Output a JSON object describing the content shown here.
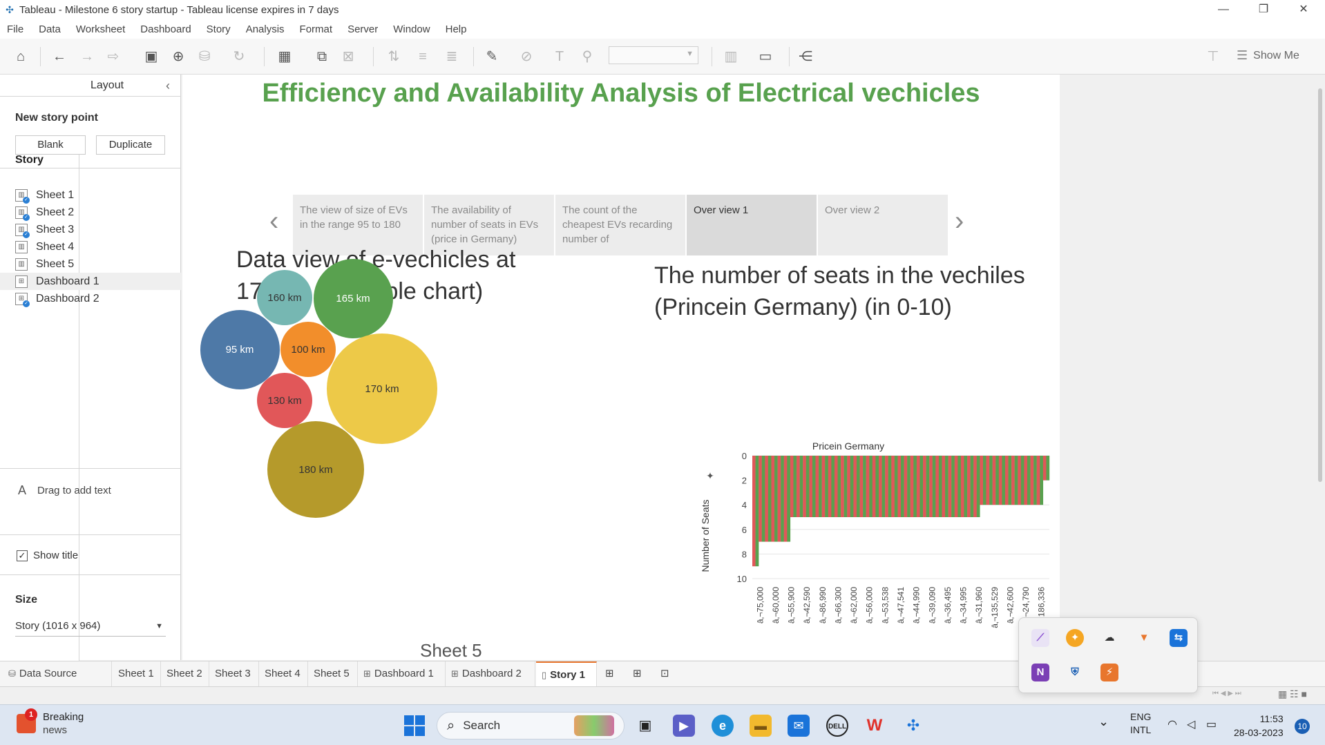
{
  "window": {
    "title": "Tableau - Milestone 6 story startup - Tableau license expires in 7 days",
    "minimize": "—",
    "restore": "❐",
    "close": "✕"
  },
  "menu": [
    "File",
    "Data",
    "Worksheet",
    "Dashboard",
    "Story",
    "Analysis",
    "Format",
    "Server",
    "Window",
    "Help"
  ],
  "toolbar": {
    "show_me": "Show Me"
  },
  "left_panel": {
    "tabs": {
      "story": "Story",
      "layout": "Layout"
    },
    "new_story_point": "New story point",
    "blank": "Blank",
    "duplicate": "Duplicate",
    "sheets": [
      {
        "label": "Sheet 1"
      },
      {
        "label": "Sheet 2"
      },
      {
        "label": "Sheet 3"
      },
      {
        "label": "Sheet 4"
      },
      {
        "label": "Sheet 5"
      },
      {
        "label": "Dashboard 1"
      },
      {
        "label": "Dashboard 2"
      }
    ],
    "drag_text": "Drag to add text",
    "show_title": "Show title",
    "size_label": "Size",
    "size_value": "Story (1016 x 964)"
  },
  "story": {
    "title": "Efficiency and Availability Analysis of Electrical vechicles",
    "points": [
      {
        "text": "The view of size of EVs in the range 95 to 180"
      },
      {
        "text": "The availability of number of seats in EVs (price in Germany)"
      },
      {
        "text": "The count of the cheapest EVs recarding number of"
      },
      {
        "text": "Over view 1"
      },
      {
        "text": "Over view 2"
      }
    ],
    "bubble_title": "Data view of e-vechicles at 170km (in bubble chart)",
    "bar_title": "The number of seats in the vechiles (Princein Germany) (in 0-10)",
    "sheet_caption": "Sheet 5"
  },
  "chart_data": [
    {
      "type": "bubble",
      "title": "Data view of e-vechicles at 170km (in bubble chart)",
      "categories": [
        "160 km",
        "165 km",
        "95 km",
        "100 km",
        "170 km",
        "130 km",
        "180 km"
      ],
      "values": [
        80,
        115,
        115,
        80,
        160,
        80,
        140
      ],
      "colors": [
        "#76b7b2",
        "#59a14f",
        "#4e79a7",
        "#f28e2b",
        "#edc948",
        "#e15759",
        "#b59a2b"
      ]
    },
    {
      "type": "bar",
      "title": "Pricein Germany",
      "ylabel": "Number of Seats",
      "ylim": [
        0,
        10
      ],
      "y_reversed": true,
      "yticks": [
        "0",
        "2",
        "4",
        "6",
        "8",
        "10"
      ],
      "xtick_labels": [
        "â‚¬75,000",
        "â‚¬60,000",
        "â‚¬55,900",
        "â‚¬42,590",
        "â‚¬86,990",
        "â‚¬66,300",
        "â‚¬62,000",
        "â‚¬56,000",
        "â‚¬53,538",
        "â‚¬47,541",
        "â‚¬44,990",
        "â‚¬39,090",
        "â‚¬36,495",
        "â‚¬34,995",
        "â‚¬31,960",
        "â‚¬135,529",
        "â‚¬42,600",
        "â‚¬24,790",
        "â‚¬186,336"
      ],
      "segments": [
        {
          "count": 2,
          "value": 9
        },
        {
          "count": 10,
          "value": 7
        },
        {
          "count": 60,
          "value": 5
        },
        {
          "count": 20,
          "value": 4
        },
        {
          "count": 2,
          "value": 2
        }
      ],
      "colors": {
        "bar_a": "#e15759",
        "bar_b": "#59a14f"
      }
    }
  ],
  "bottom_tabs": [
    {
      "label": "Data Source",
      "icon": "database-icon"
    },
    {
      "label": "Sheet 1"
    },
    {
      "label": "Sheet 2"
    },
    {
      "label": "Sheet 3"
    },
    {
      "label": "Sheet 4"
    },
    {
      "label": "Sheet 5"
    },
    {
      "label": "Dashboard 1",
      "icon": "dashboard-icon"
    },
    {
      "label": "Dashboard 2",
      "icon": "dashboard-icon"
    },
    {
      "label": "Story 1",
      "icon": "story-icon",
      "active": true
    }
  ],
  "taskbar": {
    "news_badge": "1",
    "news_line1": "Breaking",
    "news_line2": "news",
    "search": "Search",
    "lang1": "ENG",
    "lang2": "INTL",
    "time": "11:53",
    "date": "28-03-2023",
    "notifications": "10"
  }
}
